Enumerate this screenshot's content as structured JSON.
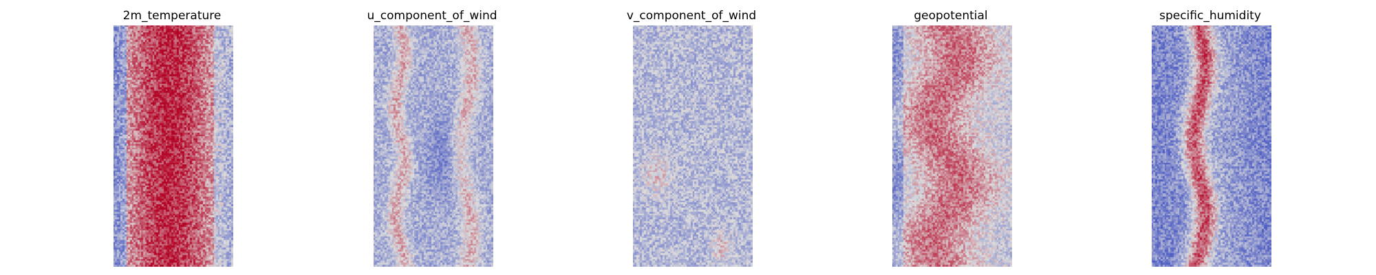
{
  "figure": {
    "background": "#ffffff"
  },
  "chart_data": [
    {
      "type": "heatmap",
      "title": "2m_temperature",
      "colormap": "coolwarm",
      "axis": "off",
      "grid": false,
      "colorbar": false,
      "grid_shape": [
        128,
        64
      ],
      "profile": "warm-center-band",
      "colors": {
        "low": "#3b4cc0",
        "mid": "#dddddd",
        "high": "#b40426"
      }
    },
    {
      "type": "heatmap",
      "title": "u_component_of_wind",
      "colormap": "coolwarm",
      "axis": "off",
      "grid": false,
      "colorbar": false,
      "grid_shape": [
        128,
        64
      ],
      "profile": "cool-with-warm-streaks",
      "colors": {
        "low": "#3b4cc0",
        "mid": "#dddddd",
        "high": "#b40426"
      }
    },
    {
      "type": "heatmap",
      "title": "v_component_of_wind",
      "colormap": "coolwarm",
      "axis": "off",
      "grid": false,
      "colorbar": false,
      "grid_shape": [
        128,
        64
      ],
      "profile": "light-cool-speckled",
      "colors": {
        "low": "#3b4cc0",
        "mid": "#dddddd",
        "high": "#b40426"
      }
    },
    {
      "type": "heatmap",
      "title": "geopotential",
      "colormap": "coolwarm",
      "axis": "off",
      "grid": false,
      "colorbar": false,
      "grid_shape": [
        128,
        64
      ],
      "profile": "warm-center-wavy-band",
      "colors": {
        "low": "#3b4cc0",
        "mid": "#dddddd",
        "high": "#b40426"
      }
    },
    {
      "type": "heatmap",
      "title": "specific_humidity",
      "colormap": "coolwarm",
      "axis": "off",
      "grid": false,
      "colorbar": false,
      "grid_shape": [
        128,
        64
      ],
      "profile": "cool-with-warm-center-streak",
      "colors": {
        "low": "#3b4cc0",
        "mid": "#dddddd",
        "high": "#b40426"
      }
    }
  ]
}
